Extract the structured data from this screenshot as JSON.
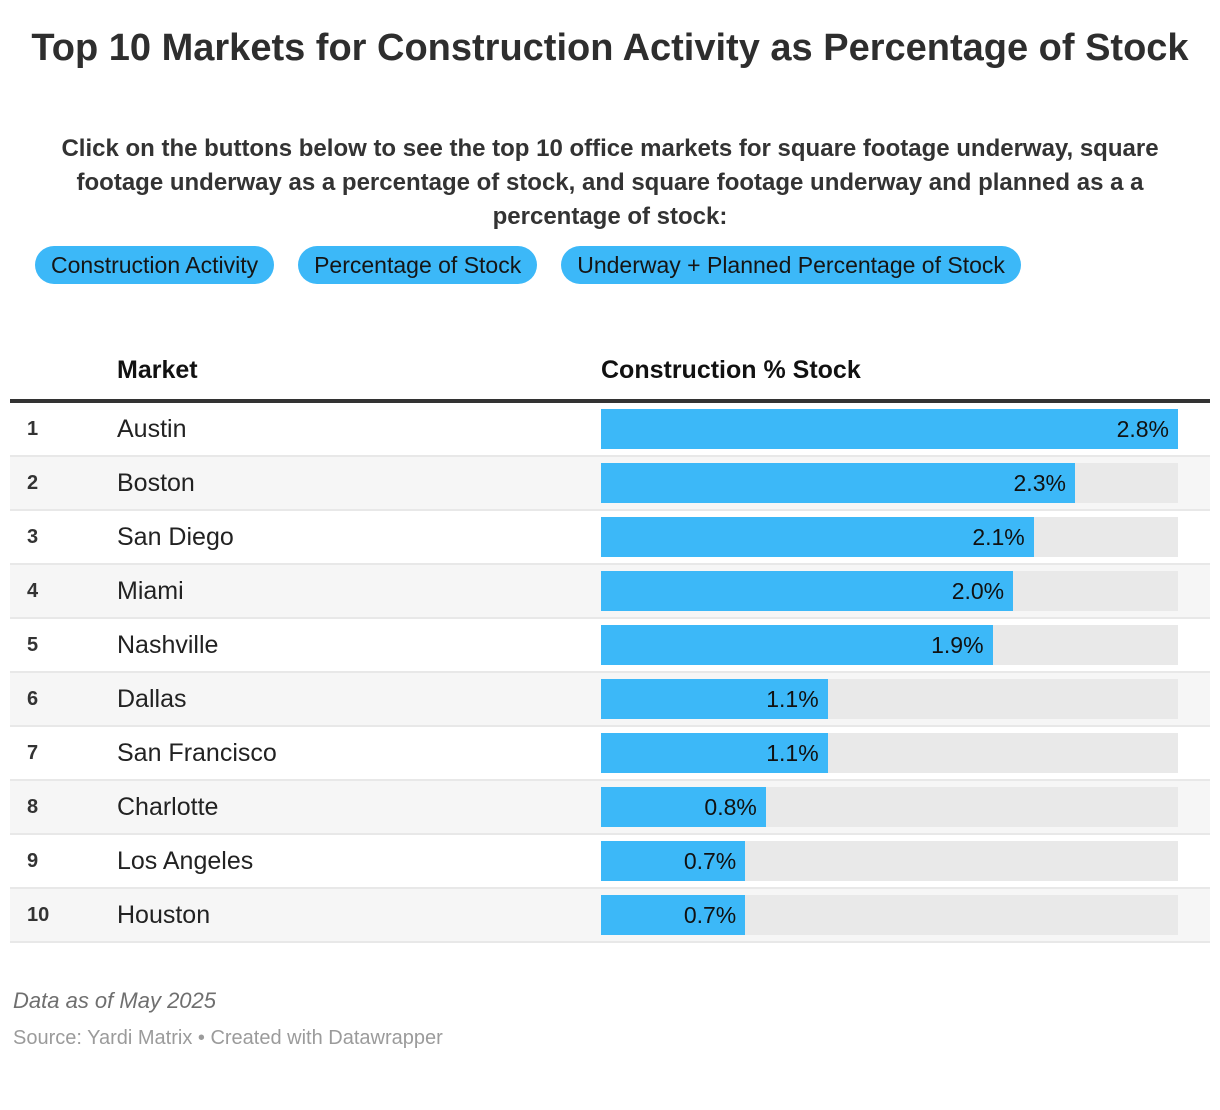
{
  "header": {
    "title": "Top 10 Markets for Construction Activity as Percentage of Stock",
    "description": "Click on the buttons below to see the top 10 office markets for square footage underway, square footage underway as a percentage of stock, and square footage underway and planned as a a percentage of stock:"
  },
  "buttons": [
    {
      "label": "Construction Activity"
    },
    {
      "label": "Percentage of Stock"
    },
    {
      "label": "Underway + Planned Percentage of Stock"
    }
  ],
  "table": {
    "columns": [
      "Market",
      "Construction % Stock"
    ],
    "rows": [
      {
        "rank": "1",
        "market": "Austin",
        "value": 2.8,
        "label": "2.8%"
      },
      {
        "rank": "2",
        "market": "Boston",
        "value": 2.3,
        "label": "2.3%"
      },
      {
        "rank": "3",
        "market": "San Diego",
        "value": 2.1,
        "label": "2.1%"
      },
      {
        "rank": "4",
        "market": "Miami",
        "value": 2.0,
        "label": "2.0%"
      },
      {
        "rank": "5",
        "market": "Nashville",
        "value": 1.9,
        "label": "1.9%"
      },
      {
        "rank": "6",
        "market": "Dallas",
        "value": 1.1,
        "label": "1.1%"
      },
      {
        "rank": "7",
        "market": "San Francisco",
        "value": 1.1,
        "label": "1.1%"
      },
      {
        "rank": "8",
        "market": "Charlotte",
        "value": 0.8,
        "label": "0.8%"
      },
      {
        "rank": "9",
        "market": "Los Angeles",
        "value": 0.7,
        "label": "0.7%"
      },
      {
        "rank": "10",
        "market": "Houston",
        "value": 0.7,
        "label": "0.7%"
      }
    ]
  },
  "chart_data": {
    "type": "bar",
    "orientation": "horizontal",
    "title": "Top 10 Markets for Construction Activity as Percentage of Stock",
    "categories": [
      "Austin",
      "Boston",
      "San Diego",
      "Miami",
      "Nashville",
      "Dallas",
      "San Francisco",
      "Charlotte",
      "Los Angeles",
      "Houston"
    ],
    "values": [
      2.8,
      2.3,
      2.1,
      2.0,
      1.9,
      1.1,
      1.1,
      0.8,
      0.7,
      0.7
    ],
    "value_labels": [
      "2.8%",
      "2.3%",
      "2.1%",
      "2.0%",
      "1.9%",
      "1.1%",
      "1.1%",
      "0.8%",
      "0.7%",
      "0.7%"
    ],
    "xlabel": "",
    "ylabel": "Construction % Stock",
    "xlim": [
      0,
      2.8
    ],
    "grid": false,
    "legend": false
  },
  "footer": {
    "note": "Data as of May 2025",
    "source": "Source: Yardi Matrix • Created with Datawrapper"
  },
  "colors": {
    "accent": "#3cb8f8",
    "track": "#e9e9e9",
    "stripe": "#f6f6f6",
    "separator": "#e8e8e8",
    "rule": "#333333"
  }
}
